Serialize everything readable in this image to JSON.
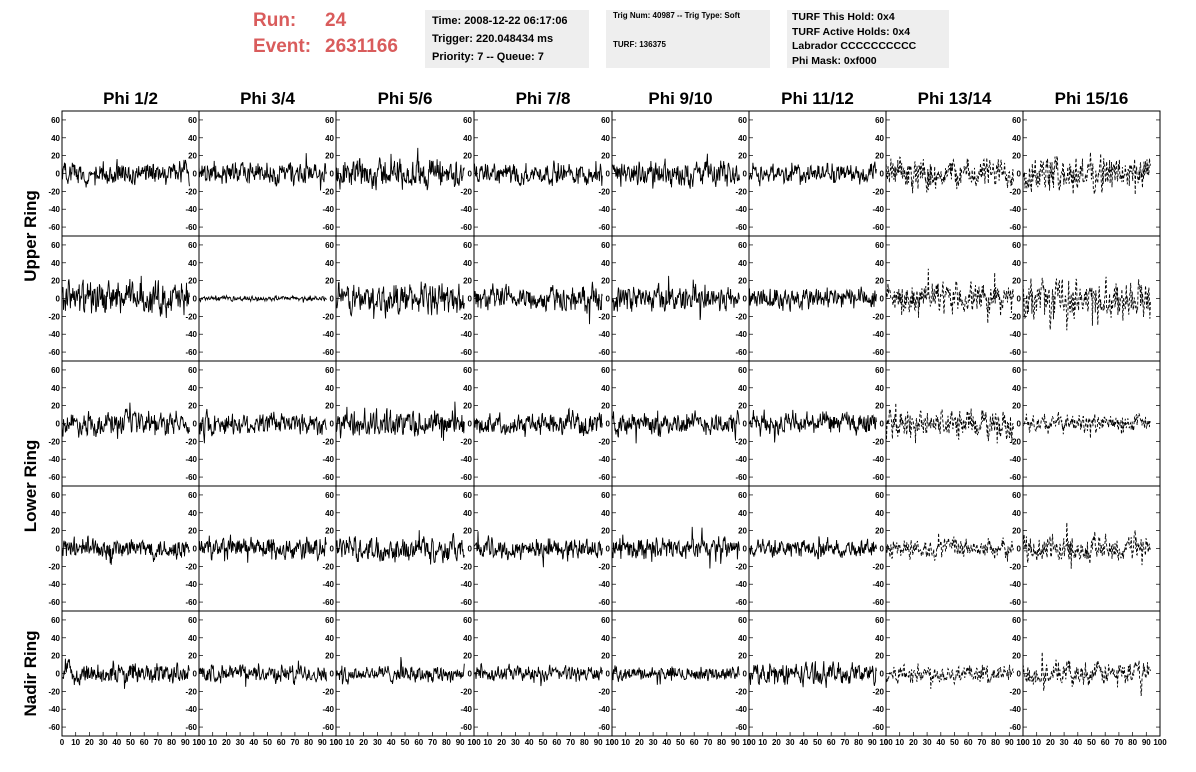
{
  "header": {
    "run_label": "Run:",
    "run_value": "24",
    "event_label": "Event:",
    "event_value": "2631166",
    "time_line": "Time: 2008-12-22 06:17:06",
    "trigger_line": "Trigger: 220.048434 ms",
    "priority_line": "Priority: 7 -- Queue: 7",
    "trig_line": "Trig Num: 40987 -- Trig Type: Soft",
    "turf_line": "TURF: 136375",
    "hold_line": "TURF This Hold: 0x4",
    "active_line": "TURF Active Holds: 0x4",
    "labrador_line": "Labrador CCCCCCCCCC",
    "phimask_line": "Phi Mask: 0xf000",
    "accent_color": "#d95c5c",
    "panel_bg": "#eeeeee"
  },
  "chart_data": {
    "type": "line",
    "columns": [
      "Phi 1/2",
      "Phi 3/4",
      "Phi 5/6",
      "Phi 7/8",
      "Phi 9/10",
      "Phi 11/12",
      "Phi 13/14",
      "Phi 15/16"
    ],
    "row_groups": [
      {
        "label": "Upper Ring",
        "rows": [
          0,
          1
        ]
      },
      {
        "label": "Lower Ring",
        "rows": [
          2,
          3
        ]
      },
      {
        "label": "Nadir Ring",
        "rows": [
          4
        ]
      }
    ],
    "rows": 5,
    "xlim": [
      0,
      100
    ],
    "ylim": [
      -70,
      70
    ],
    "xticks": [
      0,
      10,
      20,
      30,
      40,
      50,
      60,
      70,
      80,
      90,
      100
    ],
    "yticks": [
      -60,
      -40,
      -20,
      0,
      20,
      40,
      60
    ],
    "samples_per_trace": 260,
    "trace_x_range": [
      0,
      93
    ],
    "amplitudes": [
      [
        15,
        15,
        20,
        14,
        16,
        13,
        20,
        24
      ],
      [
        22,
        3,
        20,
        16,
        17,
        15,
        20,
        25
      ],
      [
        15,
        15,
        18,
        13,
        15,
        15,
        18,
        12
      ],
      [
        14,
        15,
        16,
        14,
        14,
        11,
        13,
        18
      ],
      [
        14,
        11,
        11,
        10,
        9,
        14,
        12,
        15
      ]
    ],
    "dashed_columns": [
      6,
      7
    ],
    "line_color": "#000000"
  }
}
